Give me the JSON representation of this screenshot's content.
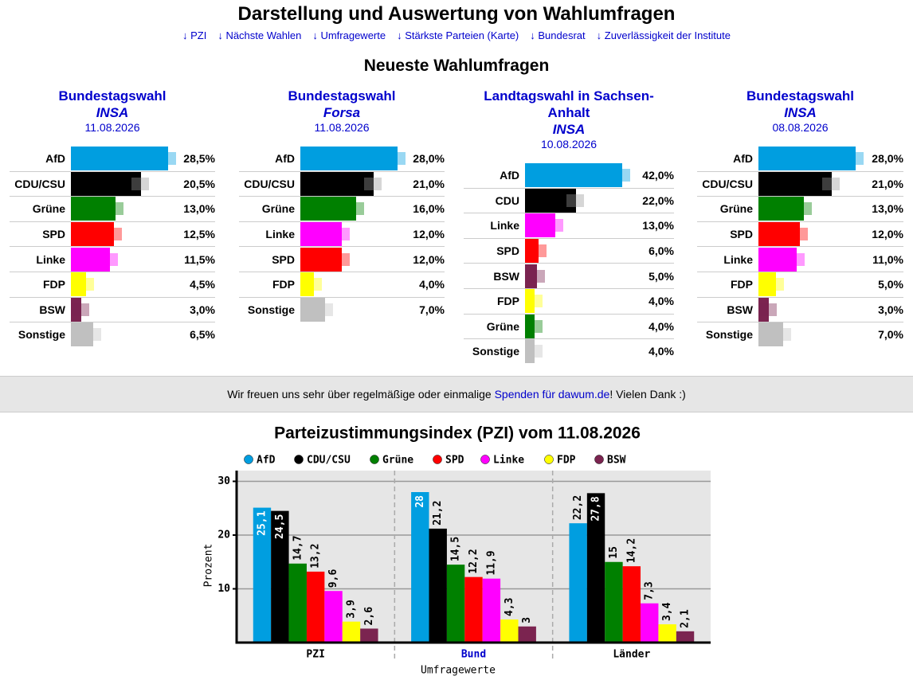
{
  "header": {
    "title": "Darstellung und Auswertung von Wahlumfragen",
    "nav": [
      "↓ PZI",
      "↓ Nächste Wahlen",
      "↓ Umfragewerte",
      "↓ Stärkste Parteien (Karte)",
      "↓ Bundesrat",
      "↓ Zuverlässigkeit der Institute"
    ]
  },
  "polls_heading": "Neueste Wahlumfragen",
  "polls": [
    {
      "title": "Bundestagswahl",
      "institute": "INSA",
      "date": "11.08.2026",
      "rows": [
        {
          "party": "AfD",
          "value": 28.5,
          "value_label": "28,5%",
          "color": "#009ee0"
        },
        {
          "party": "CDU/CSU",
          "value": 20.5,
          "value_label": "20,5%",
          "color": "#000000"
        },
        {
          "party": "Grüne",
          "value": 13.0,
          "value_label": "13,0%",
          "color": "#008000"
        },
        {
          "party": "SPD",
          "value": 12.5,
          "value_label": "12,5%",
          "color": "#ff0000"
        },
        {
          "party": "Linke",
          "value": 11.5,
          "value_label": "11,5%",
          "color": "#ff00ff"
        },
        {
          "party": "FDP",
          "value": 4.5,
          "value_label": "4,5%",
          "color": "#ffff00"
        },
        {
          "party": "BSW",
          "value": 3.0,
          "value_label": "3,0%",
          "color": "#7b2450"
        },
        {
          "party": "Sonstige",
          "value": 6.5,
          "value_label": "6,5%",
          "color": "#c0c0c0"
        }
      ]
    },
    {
      "title": "Bundestagswahl",
      "institute": "Forsa",
      "date": "11.08.2026",
      "rows": [
        {
          "party": "AfD",
          "value": 28.0,
          "value_label": "28,0%",
          "color": "#009ee0"
        },
        {
          "party": "CDU/CSU",
          "value": 21.0,
          "value_label": "21,0%",
          "color": "#000000"
        },
        {
          "party": "Grüne",
          "value": 16.0,
          "value_label": "16,0%",
          "color": "#008000"
        },
        {
          "party": "Linke",
          "value": 12.0,
          "value_label": "12,0%",
          "color": "#ff00ff"
        },
        {
          "party": "SPD",
          "value": 12.0,
          "value_label": "12,0%",
          "color": "#ff0000"
        },
        {
          "party": "FDP",
          "value": 4.0,
          "value_label": "4,0%",
          "color": "#ffff00"
        },
        {
          "party": "Sonstige",
          "value": 7.0,
          "value_label": "7,0%",
          "color": "#c0c0c0"
        }
      ]
    },
    {
      "title": "Landtagswahl in Sachsen-Anhalt",
      "institute": "INSA",
      "date": "10.08.2026",
      "rows": [
        {
          "party": "AfD",
          "value": 42.0,
          "value_label": "42,0%",
          "color": "#009ee0"
        },
        {
          "party": "CDU",
          "value": 22.0,
          "value_label": "22,0%",
          "color": "#000000"
        },
        {
          "party": "Linke",
          "value": 13.0,
          "value_label": "13,0%",
          "color": "#ff00ff"
        },
        {
          "party": "SPD",
          "value": 6.0,
          "value_label": "6,0%",
          "color": "#ff0000"
        },
        {
          "party": "BSW",
          "value": 5.0,
          "value_label": "5,0%",
          "color": "#7b2450"
        },
        {
          "party": "FDP",
          "value": 4.0,
          "value_label": "4,0%",
          "color": "#ffff00"
        },
        {
          "party": "Grüne",
          "value": 4.0,
          "value_label": "4,0%",
          "color": "#008000"
        },
        {
          "party": "Sonstige",
          "value": 4.0,
          "value_label": "4,0%",
          "color": "#c0c0c0"
        }
      ]
    },
    {
      "title": "Bundestagswahl",
      "institute": "INSA",
      "date": "08.08.2026",
      "rows": [
        {
          "party": "AfD",
          "value": 28.0,
          "value_label": "28,0%",
          "color": "#009ee0"
        },
        {
          "party": "CDU/CSU",
          "value": 21.0,
          "value_label": "21,0%",
          "color": "#000000"
        },
        {
          "party": "Grüne",
          "value": 13.0,
          "value_label": "13,0%",
          "color": "#008000"
        },
        {
          "party": "SPD",
          "value": 12.0,
          "value_label": "12,0%",
          "color": "#ff0000"
        },
        {
          "party": "Linke",
          "value": 11.0,
          "value_label": "11,0%",
          "color": "#ff00ff"
        },
        {
          "party": "FDP",
          "value": 5.0,
          "value_label": "5,0%",
          "color": "#ffff00"
        },
        {
          "party": "BSW",
          "value": 3.0,
          "value_label": "3,0%",
          "color": "#7b2450"
        },
        {
          "party": "Sonstige",
          "value": 7.0,
          "value_label": "7,0%",
          "color": "#c0c0c0"
        }
      ]
    }
  ],
  "banner": {
    "before": "Wir freuen uns sehr über regelmäßige oder einmalige ",
    "link": "Spenden für dawum.de",
    "after": "! Vielen Dank :)"
  },
  "chart_data": {
    "type": "bar",
    "title": "Parteizustimmungsindex (PZI) vom 11.08.2026",
    "categories": [
      "PZI",
      "Bund",
      "Länder"
    ],
    "x_label": "Umfragewerte",
    "y_label": "Prozent",
    "ylim": [
      0,
      32
    ],
    "yticks": [
      10,
      20,
      30
    ],
    "grid": true,
    "legend": "top",
    "series": [
      {
        "name": "AfD",
        "color": "#009ee0",
        "values": [
          25.1,
          28,
          22.2
        ],
        "value_labels": [
          "25,1",
          "28",
          "22,2"
        ]
      },
      {
        "name": "CDU/CSU",
        "color": "#000000",
        "values": [
          24.5,
          21.2,
          27.8
        ],
        "value_labels": [
          "24,5",
          "21,2",
          "27,8"
        ]
      },
      {
        "name": "Grüne",
        "color": "#008000",
        "values": [
          14.7,
          14.5,
          15
        ],
        "value_labels": [
          "14,7",
          "14,5",
          "15"
        ]
      },
      {
        "name": "SPD",
        "color": "#ff0000",
        "values": [
          13.2,
          12.2,
          14.2
        ],
        "value_labels": [
          "13,2",
          "12,2",
          "14,2"
        ]
      },
      {
        "name": "Linke",
        "color": "#ff00ff",
        "values": [
          9.6,
          11.9,
          7.3
        ],
        "value_labels": [
          "9,6",
          "11,9",
          "7,3"
        ]
      },
      {
        "name": "FDP",
        "color": "#ffff00",
        "values": [
          3.9,
          4.3,
          3.4
        ],
        "value_labels": [
          "3,9",
          "4,3",
          "3,4"
        ]
      },
      {
        "name": "BSW",
        "color": "#7b2450",
        "values": [
          2.6,
          3,
          2.1
        ],
        "value_labels": [
          "2,6",
          "3",
          "2,1"
        ]
      }
    ]
  }
}
